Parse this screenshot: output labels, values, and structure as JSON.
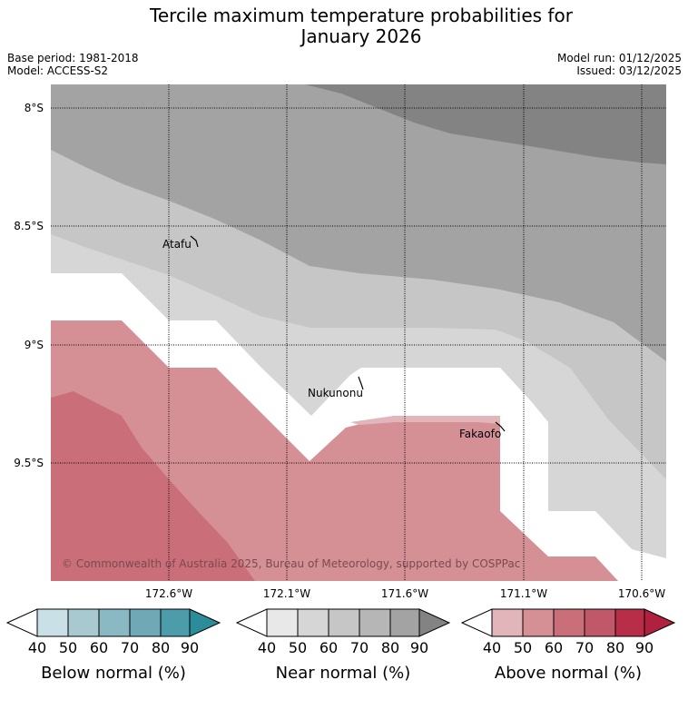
{
  "title": {
    "line1": "Tercile maximum temperature probabilities for",
    "line2": "January 2026"
  },
  "meta": {
    "base_period": "Base period: 1981-2018",
    "model": "Model: ACCESS-S2",
    "model_run": "Model run: 01/12/2025",
    "issued": "Issued: 03/12/2025"
  },
  "map": {
    "lat_labels": [
      "8°S",
      "8.5°S",
      "9°S",
      "9.5°S"
    ],
    "lon_labels": [
      "172.6°W",
      "172.1°W",
      "171.6°W",
      "171.1°W",
      "170.6°W"
    ],
    "places": [
      "Atafu",
      "Nukunonu",
      "Fakaofo"
    ],
    "copyright": "© Commonwealth of Australia 2025, Bureau of Meteorology, supported by COSPPac"
  },
  "legend": {
    "tick_labels": [
      "40",
      "50",
      "60",
      "70",
      "80",
      "90"
    ],
    "below": {
      "title": "Below normal (%)",
      "colors": [
        "#ffffff",
        "#c8e0e6",
        "#a9c9d0",
        "#8ab8c3",
        "#6fa9b6",
        "#4c9ca9",
        "#2c8c9a"
      ]
    },
    "near": {
      "title": "Near normal (%)",
      "colors": [
        "#ffffff",
        "#e8e8e8",
        "#d6d6d6",
        "#c6c6c6",
        "#b6b6b6",
        "#a3a3a3",
        "#838383"
      ]
    },
    "above": {
      "title": "Above normal (%)",
      "colors": [
        "#ffffff",
        "#e1b5ba",
        "#d59096",
        "#ca6f79",
        "#c0586a",
        "#b82e49",
        "#b0213f"
      ]
    }
  }
}
